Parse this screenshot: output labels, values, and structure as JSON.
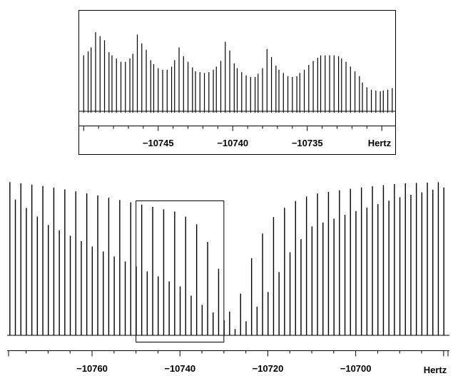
{
  "chart_data": [
    {
      "type": "line",
      "role": "inset-zoom",
      "xlabel": "Hertz",
      "xlim": [
        -10750.3,
        -10729.1
      ],
      "x_tick_labels": [
        -10745,
        -10740,
        -10735
      ],
      "x_minor_tick_step": 1,
      "baseline_fraction": 0.3,
      "bar_spacing_hz": 0.28,
      "description_of_signal": "stick spectrum with recurring peak clusters",
      "x": [
        -10750.0,
        -10749.7,
        -10749.5,
        -10749.2,
        -10748.9,
        -10748.6,
        -10748.3,
        -10748.1,
        -10747.8,
        -10747.5,
        -10747.2,
        -10746.9,
        -10746.7,
        -10746.4,
        -10746.1,
        -10745.8,
        -10745.5,
        -10745.3,
        -10745.0,
        -10744.7,
        -10744.4,
        -10744.1,
        -10743.9,
        -10743.6,
        -10743.3,
        -10743.0,
        -10742.7,
        -10742.5,
        -10742.2,
        -10741.9,
        -10741.6,
        -10741.3,
        -10741.1,
        -10740.8,
        -10740.5,
        -10740.2,
        -10739.9,
        -10739.7,
        -10739.4,
        -10739.1,
        -10738.8,
        -10738.5,
        -10738.3,
        -10738.0,
        -10737.7,
        -10737.4,
        -10737.1,
        -10736.9,
        -10736.6,
        -10736.3,
        -10736.0,
        -10735.7,
        -10735.5,
        -10735.2,
        -10734.9,
        -10734.6,
        -10734.3,
        -10734.1,
        -10733.8,
        -10733.5,
        -10733.2,
        -10732.9,
        -10732.7,
        -10732.4,
        -10732.1,
        -10731.8,
        -10731.5,
        -10731.3,
        -10731.0,
        -10730.7,
        -10730.4,
        -10730.1,
        -10729.9,
        -10729.6,
        -10729.3
      ],
      "y": [
        0.7,
        0.75,
        0.8,
        0.99,
        0.94,
        0.89,
        0.74,
        0.7,
        0.66,
        0.62,
        0.62,
        0.66,
        0.72,
        0.96,
        0.85,
        0.77,
        0.64,
        0.59,
        0.54,
        0.52,
        0.52,
        0.56,
        0.64,
        0.8,
        0.69,
        0.62,
        0.55,
        0.5,
        0.49,
        0.48,
        0.49,
        0.52,
        0.56,
        0.63,
        0.87,
        0.76,
        0.6,
        0.54,
        0.49,
        0.45,
        0.43,
        0.43,
        0.47,
        0.54,
        0.78,
        0.68,
        0.57,
        0.52,
        0.48,
        0.44,
        0.43,
        0.44,
        0.48,
        0.52,
        0.58,
        0.63,
        0.67,
        0.7,
        0.7,
        0.7,
        0.7,
        0.69,
        0.66,
        0.62,
        0.56,
        0.5,
        0.44,
        0.36,
        0.3,
        0.27,
        0.26,
        0.25,
        0.26,
        0.27,
        0.29
      ]
    },
    {
      "type": "line",
      "role": "full-spectrum",
      "xlabel": "Hertz",
      "xlim": [
        -10779,
        -10679
      ],
      "x_tick_labels": [
        -10760,
        -10740,
        -10720,
        -10700
      ],
      "x_minor_tick_step": 5,
      "zoom_box_range": [
        -10750,
        -10730
      ],
      "description_of_signal": "stick spectrum, strong lines at the edges with a central dip near -10728",
      "envelope": {
        "x": [
          -10779,
          -10770,
          -10760,
          -10750,
          -10740,
          -10735,
          -10730,
          -10728,
          -10725,
          -10720,
          -10715,
          -10710,
          -10700,
          -10690,
          -10679
        ],
        "hi": [
          1.0,
          0.97,
          0.92,
          0.86,
          0.8,
          0.7,
          0.35,
          0.05,
          0.42,
          0.74,
          0.86,
          0.92,
          0.96,
          0.99,
          1.0
        ],
        "lo": [
          0.92,
          0.72,
          0.58,
          0.45,
          0.32,
          0.2,
          0.1,
          0.03,
          0.09,
          0.28,
          0.54,
          0.71,
          0.81,
          0.9,
          0.97
        ]
      },
      "line_spacing_hz": 1.25
    }
  ]
}
